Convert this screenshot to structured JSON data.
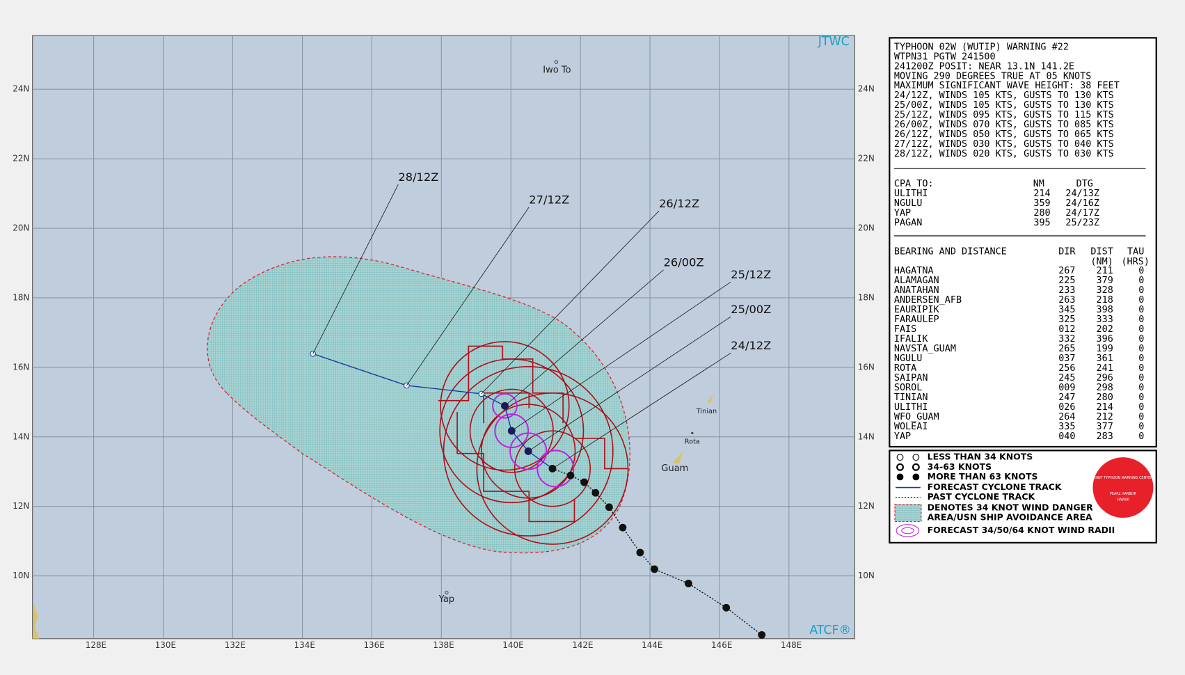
{
  "map": {
    "corner_labels": {
      "top": "JTWC",
      "bottom": "ATCF®"
    },
    "lon_labels": [
      "128E",
      "130E",
      "132E",
      "134E",
      "136E",
      "138E",
      "140E",
      "142E",
      "144E",
      "146E",
      "148E"
    ],
    "lat_labels": [
      "24N",
      "22N",
      "20N",
      "18N",
      "16N",
      "14N",
      "12N",
      "10N"
    ],
    "places": [
      "Iwo To",
      "Tinian",
      "Rota",
      "Guam",
      "Yap"
    ],
    "forecast_labels": [
      "28/12Z",
      "27/12Z",
      "26/12Z",
      "26/00Z",
      "25/12Z",
      "25/00Z",
      "24/12Z"
    ]
  },
  "warning": {
    "lines": [
      "TYPHOON 02W (WUTIP) WARNING #22",
      "WTPN31 PGTW 241500",
      "241200Z POSIT: NEAR 13.1N 141.2E",
      "MOVING 290 DEGREES TRUE AT 05 KNOTS",
      "MAXIMUM SIGNIFICANT WAVE HEIGHT: 38 FEET",
      "24/12Z, WINDS 105 KTS, GUSTS TO 130 KTS",
      "25/00Z, WINDS 105 KTS, GUSTS TO 130 KTS",
      "25/12Z, WINDS 095 KTS, GUSTS TO 115 KTS",
      "26/00Z, WINDS 070 KTS, GUSTS TO 085 KTS",
      "26/12Z, WINDS 050 KTS, GUSTS TO 065 KTS",
      "27/12Z, WINDS 030 KTS, GUSTS TO 040 KTS",
      "28/12Z, WINDS 020 KTS, GUSTS TO 030 KTS"
    ]
  },
  "cpa": {
    "header": [
      "CPA TO:",
      "NM",
      "DTG"
    ],
    "rows": [
      [
        "ULITHI",
        "214",
        "24/13Z"
      ],
      [
        "NGULU",
        "359",
        "24/16Z"
      ],
      [
        "YAP",
        "280",
        "24/17Z"
      ],
      [
        "PAGAN",
        "395",
        "25/23Z"
      ]
    ]
  },
  "bearing": {
    "header": [
      "BEARING AND DISTANCE",
      "DIR",
      "DIST",
      "TAU"
    ],
    "subheader": [
      "(NM)",
      "(HRS)"
    ],
    "rows": [
      [
        "HAGATNA",
        "267",
        "211",
        "0"
      ],
      [
        "ALAMAGAN",
        "225",
        "379",
        "0"
      ],
      [
        "ANATAHAN",
        "233",
        "328",
        "0"
      ],
      [
        "ANDERSEN_AFB",
        "263",
        "218",
        "0"
      ],
      [
        "EAURIPIK",
        "345",
        "398",
        "0"
      ],
      [
        "FARAULEP",
        "325",
        "333",
        "0"
      ],
      [
        "FAIS",
        "012",
        "202",
        "0"
      ],
      [
        "IFALIK",
        "332",
        "396",
        "0"
      ],
      [
        "NAVSTA_GUAM",
        "265",
        "199",
        "0"
      ],
      [
        "NGULU",
        "037",
        "361",
        "0"
      ],
      [
        "ROTA",
        "256",
        "241",
        "0"
      ],
      [
        "SAIPAN",
        "245",
        "296",
        "0"
      ],
      [
        "SOROL",
        "009",
        "298",
        "0"
      ],
      [
        "TINIAN",
        "247",
        "280",
        "0"
      ],
      [
        "ULITHI",
        "026",
        "214",
        "0"
      ],
      [
        "WFO_GUAM",
        "264",
        "212",
        "0"
      ],
      [
        "WOLEAI",
        "335",
        "377",
        "0"
      ],
      [
        "YAP",
        "040",
        "283",
        "0"
      ]
    ]
  },
  "legend": {
    "items": [
      "LESS THAN 34 KNOTS",
      "34-63 KNOTS",
      "MORE THAN 63 KNOTS",
      "FORECAST CYCLONE TRACK",
      "PAST CYCLONE TRACK",
      "DENOTES 34 KNOT WIND DANGER",
      "AREA/USN SHIP AVOIDANCE AREA",
      "FORECAST 34/50/64 KNOT WIND RADII"
    ],
    "logo": [
      "JOINT TYPHOON WARNING CENTER",
      "PEARL HARBOR",
      "HAWAII"
    ]
  }
}
